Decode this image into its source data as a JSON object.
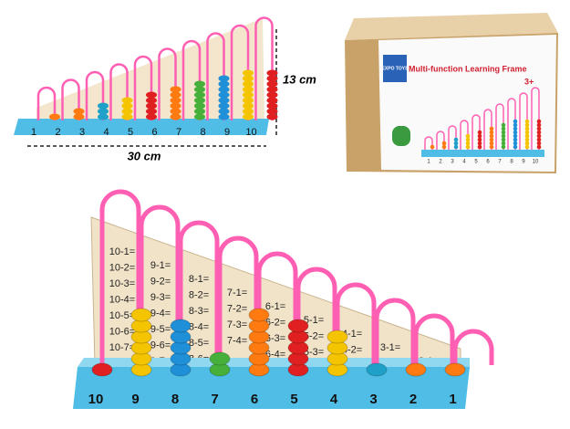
{
  "small_abacus": {
    "base_labels": [
      "1",
      "2",
      "3",
      "4",
      "5",
      "6",
      "7",
      "8",
      "9",
      "10"
    ],
    "height": "13 cm",
    "width": "30 cm"
  },
  "box": {
    "brand": "EXPO TOYS",
    "title": "Multi-function Learning Frame",
    "age": "3+",
    "base_labels": [
      "1",
      "2",
      "3",
      "4",
      "5",
      "6",
      "7",
      "8",
      "9",
      "10"
    ]
  },
  "main_abacus": {
    "columns": [
      {
        "label": "10",
        "equations": [
          "10-1=",
          "10-2=",
          "10-3=",
          "10-4=",
          "10-5=",
          "10-6=",
          "10-7="
        ]
      },
      {
        "label": "9",
        "equations": [
          "9-1=",
          "9-2=",
          "9-3=",
          "9-4=",
          "9-5=",
          "9-6=",
          "9-7="
        ]
      },
      {
        "label": "8",
        "equations": [
          "8-1=",
          "8-2=",
          "8-3=",
          "8-4=",
          "8-5=",
          "8-6=",
          "8-7="
        ]
      },
      {
        "label": "7",
        "equations": [
          "7-1=",
          "7-2=",
          "7-3=",
          "7-4="
        ]
      },
      {
        "label": "6",
        "equations": [
          "6-1=",
          "6-2=",
          "6-3=",
          "6-4="
        ]
      },
      {
        "label": "5",
        "equations": [
          "5-1=",
          "5-2=",
          "5-3="
        ]
      },
      {
        "label": "4",
        "equations": [
          "4-1=",
          "4-2=",
          "4-3="
        ]
      },
      {
        "label": "3",
        "equations": [
          "3-1=",
          "3-2="
        ]
      },
      {
        "label": "2",
        "equations": [
          "2-1="
        ]
      },
      {
        "label": "1",
        "equations": []
      }
    ]
  }
}
